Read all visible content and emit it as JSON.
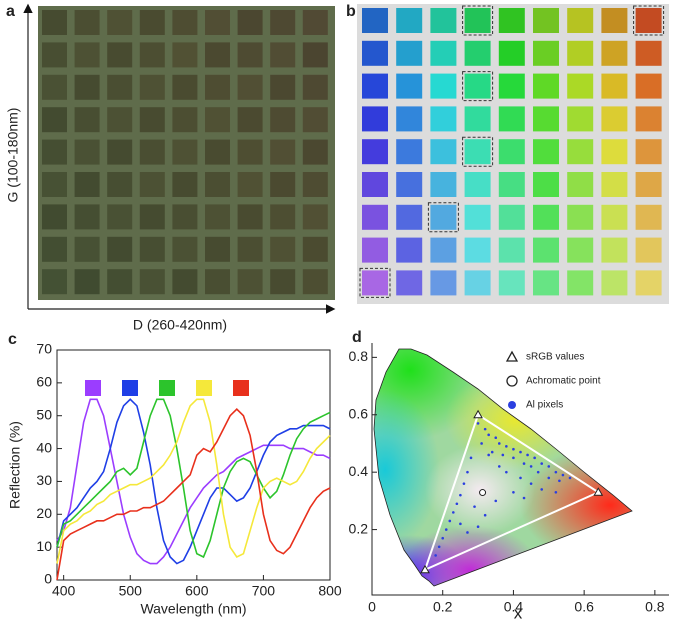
{
  "panels": {
    "a": {
      "label": "a",
      "x_label": "D (260-420nm)",
      "y_label": "G (100-180nm)"
    },
    "b": {
      "label": "b"
    }
  },
  "chart_data": [
    {
      "type": "line",
      "panel_label": "c",
      "x_label": "Wavelength (nm)",
      "y_label": "Reflection (%)",
      "x": [
        390,
        400,
        410,
        420,
        430,
        440,
        450,
        460,
        470,
        480,
        490,
        500,
        510,
        520,
        530,
        540,
        550,
        560,
        570,
        580,
        590,
        600,
        610,
        620,
        630,
        640,
        650,
        660,
        670,
        680,
        690,
        700,
        710,
        720,
        730,
        740,
        750,
        760,
        770,
        780,
        790,
        800
      ],
      "xlim": [
        390,
        800
      ],
      "xticks": [
        400,
        500,
        600,
        700,
        800
      ],
      "ylim": [
        0,
        70
      ],
      "yticks": [
        0,
        10,
        20,
        30,
        40,
        50,
        60,
        70
      ],
      "series": [
        {
          "color": "#9b3dff",
          "values": [
            12,
            15,
            22,
            35,
            48,
            55,
            55,
            50,
            40,
            30,
            20,
            13,
            8,
            6,
            5,
            5,
            7,
            10,
            14,
            18,
            22,
            25,
            28,
            30,
            32,
            33,
            35,
            37,
            38,
            39,
            40,
            41,
            41,
            41,
            41,
            40,
            40,
            40,
            39,
            38,
            38,
            37
          ]
        },
        {
          "color": "#1f3fe6",
          "values": [
            10,
            18,
            20,
            22,
            25,
            28,
            30,
            33,
            40,
            48,
            53,
            55,
            53,
            45,
            35,
            22,
            12,
            7,
            5,
            6,
            10,
            15,
            20,
            25,
            28,
            28,
            26,
            24,
            25,
            28,
            33,
            38,
            42,
            44,
            45,
            46,
            46,
            47,
            47,
            47,
            47,
            46
          ]
        },
        {
          "color": "#2cc42c",
          "values": [
            10,
            17,
            18,
            20,
            22,
            24,
            26,
            28,
            30,
            33,
            34,
            32,
            34,
            42,
            50,
            55,
            55,
            50,
            40,
            28,
            15,
            8,
            7,
            12,
            20,
            28,
            33,
            36,
            37,
            36,
            32,
            28,
            25,
            27,
            32,
            38,
            43,
            46,
            48,
            49,
            50,
            51
          ]
        },
        {
          "color": "#f5e83a",
          "values": [
            5,
            15,
            17,
            18,
            20,
            21,
            23,
            24,
            26,
            27,
            28,
            29,
            29,
            30,
            31,
            33,
            35,
            38,
            42,
            48,
            53,
            55,
            55,
            48,
            35,
            20,
            10,
            7,
            8,
            15,
            22,
            28,
            30,
            31,
            30,
            29,
            30,
            33,
            37,
            40,
            42,
            44
          ]
        },
        {
          "color": "#e8301c",
          "values": [
            0,
            12,
            14,
            15,
            16,
            17,
            18,
            18,
            19,
            20,
            20,
            21,
            21,
            22,
            22,
            23,
            24,
            26,
            28,
            30,
            32,
            38,
            40,
            39,
            42,
            46,
            50,
            52,
            50,
            44,
            33,
            20,
            12,
            9,
            8,
            10,
            14,
            18,
            22,
            25,
            27,
            28
          ]
        }
      ]
    },
    {
      "type": "scatter",
      "panel_label": "d",
      "x_label": "x",
      "xlim": [
        0,
        0.84
      ],
      "xticks": [
        0,
        0.2,
        0.4,
        0.6,
        0.8
      ],
      "ylim": [
        0,
        0.85
      ],
      "yticks": [
        0.2,
        0.4,
        0.6,
        0.8
      ],
      "series": [
        {
          "name": "sRGB values",
          "color": "#ffffff",
          "marker": "triangle",
          "x": [
            0.64,
            0.3,
            0.15
          ],
          "values": [
            0.33,
            0.6,
            0.06
          ]
        },
        {
          "name": "Achromatic point",
          "color": "#ffffff",
          "marker": "circle",
          "x": [
            0.3127
          ],
          "values": [
            0.329
          ]
        },
        {
          "name": "Al pixels",
          "color": "#2b3fe0",
          "marker": "dot",
          "x": [
            0.3,
            0.32,
            0.33,
            0.35,
            0.36,
            0.38,
            0.4,
            0.42,
            0.44,
            0.46,
            0.48,
            0.5,
            0.52,
            0.54,
            0.56,
            0.34,
            0.37,
            0.4,
            0.43,
            0.45,
            0.47,
            0.5,
            0.53,
            0.31,
            0.33,
            0.36,
            0.38,
            0.42,
            0.45,
            0.48,
            0.52,
            0.28,
            0.27,
            0.26,
            0.25,
            0.24,
            0.23,
            0.22,
            0.21,
            0.2,
            0.19,
            0.18,
            0.25,
            0.27,
            0.3,
            0.32,
            0.29,
            0.35,
            0.4,
            0.43
          ],
          "values": [
            0.57,
            0.55,
            0.53,
            0.52,
            0.5,
            0.49,
            0.48,
            0.47,
            0.46,
            0.45,
            0.43,
            0.42,
            0.4,
            0.39,
            0.38,
            0.47,
            0.46,
            0.45,
            0.43,
            0.42,
            0.4,
            0.38,
            0.37,
            0.5,
            0.46,
            0.42,
            0.4,
            0.38,
            0.36,
            0.34,
            0.33,
            0.45,
            0.4,
            0.36,
            0.32,
            0.29,
            0.26,
            0.23,
            0.2,
            0.17,
            0.14,
            0.11,
            0.22,
            0.19,
            0.21,
            0.25,
            0.28,
            0.3,
            0.33,
            0.31
          ]
        }
      ]
    }
  ]
}
